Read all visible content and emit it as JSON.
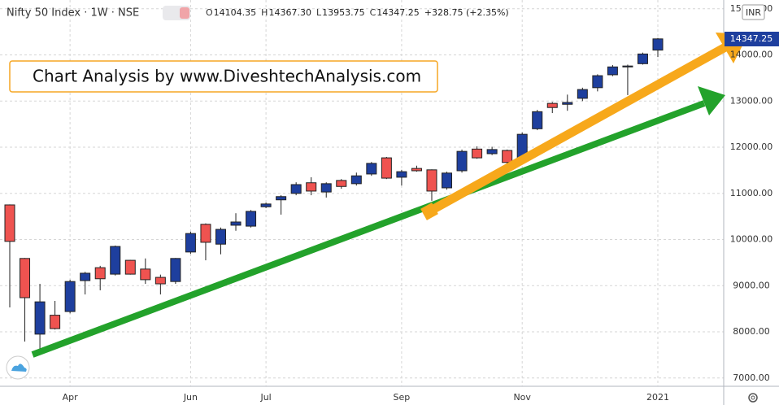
{
  "chart_data": {
    "type": "candlestick",
    "title": "Nifty 50 Index · 1W · NSE",
    "ohlc_letters": {
      "open": "O",
      "high": "H",
      "low": "L",
      "close": "C"
    },
    "ohlc_labels": {
      "open": "14104.35",
      "high": "14367.30",
      "low": "13953.75",
      "close": "14347.25"
    },
    "change_label": "+328.75 (+2.35%)",
    "annotation": "Chart Analysis by www.DiveshtechAnalysis.com",
    "currency": "INR",
    "up_color": "#1e3f9e",
    "down_color": "#ef5350",
    "grid": true,
    "categories": [
      null,
      null,
      null,
      null,
      "Apr",
      null,
      null,
      null,
      null,
      null,
      null,
      null,
      "Jun",
      null,
      null,
      null,
      null,
      "Jul",
      null,
      null,
      null,
      null,
      null,
      null,
      null,
      null,
      "Sep",
      null,
      null,
      null,
      null,
      null,
      null,
      null,
      "Nov",
      null,
      null,
      null,
      null,
      null,
      null,
      null,
      null,
      "2021"
    ],
    "open": [
      10750,
      9590,
      7950,
      8360,
      8440,
      9110,
      9390,
      9250,
      9550,
      9360,
      9180,
      9090,
      9730,
      10330,
      9900,
      10310,
      10290,
      10710,
      10860,
      11000,
      11230,
      11030,
      11280,
      11210,
      11420,
      11770,
      11350,
      11540,
      11510,
      11120,
      11490,
      11960,
      11860,
      11930,
      11740,
      12400,
      12950,
      12930,
      13060,
      13290,
      13570,
      13740,
      13810,
      14104.35
    ],
    "high": [
      10760,
      9600,
      9040,
      8670,
      9130,
      9300,
      9430,
      9870,
      9560,
      9590,
      9240,
      9600,
      10170,
      10350,
      10260,
      10570,
      10640,
      10800,
      10960,
      11240,
      11350,
      11240,
      11310,
      11450,
      11680,
      11790,
      11510,
      11600,
      11520,
      11470,
      11950,
      12020,
      12010,
      11950,
      12320,
      12810,
      12980,
      13140,
      13290,
      13580,
      13780,
      13790,
      14050,
      14367.3
    ],
    "low": [
      8530,
      7790,
      7580,
      8050,
      8400,
      8810,
      8900,
      9220,
      9240,
      9040,
      8810,
      9040,
      9690,
      9550,
      9680,
      10190,
      10260,
      10680,
      10540,
      10960,
      10960,
      10910,
      11100,
      11170,
      11380,
      11310,
      11170,
      11470,
      10840,
      11080,
      11450,
      11750,
      11830,
      11520,
      11700,
      12370,
      12740,
      12790,
      13000,
      13210,
      13540,
      13130,
      13790,
      13953.75
    ],
    "close": [
      9960,
      8740,
      8650,
      8070,
      9090,
      9270,
      9150,
      9850,
      9250,
      9130,
      9040,
      9590,
      10130,
      9940,
      10220,
      10380,
      10610,
      10770,
      10930,
      11190,
      11050,
      11210,
      11150,
      11380,
      11650,
      11330,
      11470,
      11490,
      11050,
      11440,
      11910,
      11770,
      11950,
      11670,
      12280,
      12770,
      12860,
      12970,
      13250,
      13550,
      13740,
      13760,
      14020,
      14347.25
    ],
    "ylim": [
      6820,
      15190
    ],
    "yticks": [
      {
        "value": 7000,
        "label": "7000.00"
      },
      {
        "value": 8000,
        "label": "8000.00"
      },
      {
        "value": 9000,
        "label": "9000.00"
      },
      {
        "value": 10000,
        "label": "10000.00"
      },
      {
        "value": 11000,
        "label": "11000.00"
      },
      {
        "value": 12000,
        "label": "12000.00"
      },
      {
        "value": 13000,
        "label": "13000.00"
      },
      {
        "value": 14000,
        "label": "14000.00"
      },
      {
        "value": 15000,
        "label": "15000.00"
      }
    ]
  }
}
